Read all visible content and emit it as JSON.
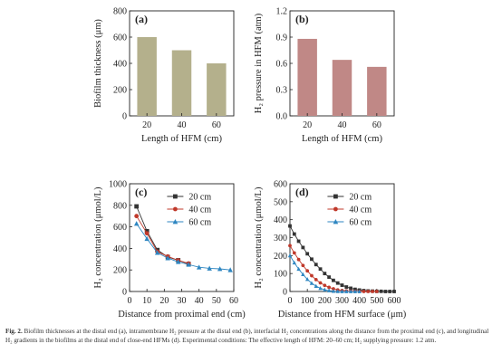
{
  "figure": {
    "caption_label": "Fig. 2.",
    "caption_text": "Biofilm thicknesses at the distal end (a), intramembrane H₂ pressure at the distal end (b), interfacial H₂ concentrations along the distance from the proximal end (c), and longitudinal H₂ gradients in the biofilms at the distal end of close-end HFMs (d). Experimental conditions: The effective length of HFM: 20–60 cm; H₂ supplying pressure: 1.2 atm."
  },
  "chart_data": [
    {
      "panel": "(a)",
      "type": "bar",
      "categories": [
        "20",
        "40",
        "60"
      ],
      "values": [
        600,
        500,
        400
      ],
      "xlabel": "Length of HFM (cm)",
      "ylabel": "Biofilm thickness (μm)",
      "ylim": [
        0,
        800
      ],
      "yticks": [
        "0",
        "200",
        "400",
        "600",
        "800"
      ],
      "bar_color": "#b4b08c",
      "grid": false
    },
    {
      "panel": "(b)",
      "type": "bar",
      "categories": [
        "20",
        "40",
        "60"
      ],
      "values": [
        0.88,
        0.64,
        0.56
      ],
      "xlabel": "Length of HFM (cm)",
      "ylabel": "H₂ pressure in HFM (atm)",
      "ylim": [
        0,
        1.2
      ],
      "yticks": [
        "0.0",
        "0.3",
        "0.6",
        "0.9",
        "1.2"
      ],
      "bar_color": "#c08886",
      "grid": false
    },
    {
      "panel": "(c)",
      "type": "line",
      "xlabel": "Distance from proximal end (cm)",
      "ylabel": "H₂ concentration (μmol/L)",
      "xlim": [
        0,
        60
      ],
      "ylim": [
        0,
        1000
      ],
      "xticks": [
        "0",
        "10",
        "20",
        "30",
        "40",
        "50",
        "60"
      ],
      "yticks": [
        "0",
        "200",
        "400",
        "600",
        "800",
        "1000"
      ],
      "legend_placement": "top-right",
      "series": [
        {
          "name": "20 cm",
          "color": "#333333",
          "marker": "square",
          "x": [
            4,
            10,
            16,
            22,
            28,
            34
          ],
          "y": [
            790,
            560,
            385,
            320,
            290,
            255
          ]
        },
        {
          "name": "40 cm",
          "color": "#c0392b",
          "marker": "circle",
          "x": [
            4,
            10,
            16,
            22,
            28,
            34
          ],
          "y": [
            700,
            540,
            370,
            325,
            290,
            260
          ]
        },
        {
          "name": "60 cm",
          "color": "#2e86c1",
          "marker": "triangle",
          "x": [
            4,
            10,
            16,
            22,
            28,
            34,
            40,
            46,
            52,
            58
          ],
          "y": [
            630,
            490,
            360,
            310,
            275,
            250,
            225,
            215,
            210,
            200
          ]
        }
      ]
    },
    {
      "panel": "(d)",
      "type": "line",
      "xlabel": "Distance from HFM surface (μm)",
      "ylabel": "H₂ concentration (μmol/L)",
      "xlim": [
        0,
        600
      ],
      "ylim": [
        0,
        600
      ],
      "xticks": [
        "0",
        "100",
        "200",
        "300",
        "400",
        "500",
        "600"
      ],
      "yticks": [
        "0",
        "100",
        "200",
        "300",
        "400",
        "500",
        "600"
      ],
      "legend_placement": "top-right",
      "series": [
        {
          "name": "20 cm",
          "color": "#333333",
          "marker": "square",
          "x": [
            0,
            25,
            50,
            75,
            100,
            125,
            150,
            175,
            200,
            225,
            250,
            275,
            300,
            325,
            350,
            375,
            400,
            425,
            450,
            475,
            500,
            525,
            550,
            575,
            600
          ],
          "y": [
            365,
            320,
            280,
            245,
            210,
            180,
            150,
            125,
            100,
            80,
            62,
            47,
            35,
            25,
            18,
            12,
            8,
            5,
            3,
            2,
            1,
            1,
            0,
            0,
            0
          ]
        },
        {
          "name": "40 cm",
          "color": "#c0392b",
          "marker": "circle",
          "x": [
            0,
            25,
            50,
            75,
            100,
            125,
            150,
            175,
            200,
            225,
            250,
            275,
            300,
            325,
            350,
            375,
            400,
            425,
            450,
            475,
            500
          ],
          "y": [
            255,
            215,
            178,
            145,
            115,
            88,
            66,
            48,
            34,
            23,
            15,
            9,
            5,
            3,
            2,
            1,
            0,
            0,
            0,
            0,
            0
          ]
        },
        {
          "name": "60 cm",
          "color": "#2e86c1",
          "marker": "triangle",
          "x": [
            0,
            25,
            50,
            75,
            100,
            125,
            150,
            175,
            200,
            225,
            250,
            275,
            300,
            325,
            350,
            375,
            400
          ],
          "y": [
            200,
            160,
            125,
            95,
            68,
            46,
            30,
            18,
            10,
            5,
            2,
            1,
            0,
            0,
            0,
            0,
            0
          ]
        }
      ]
    }
  ]
}
